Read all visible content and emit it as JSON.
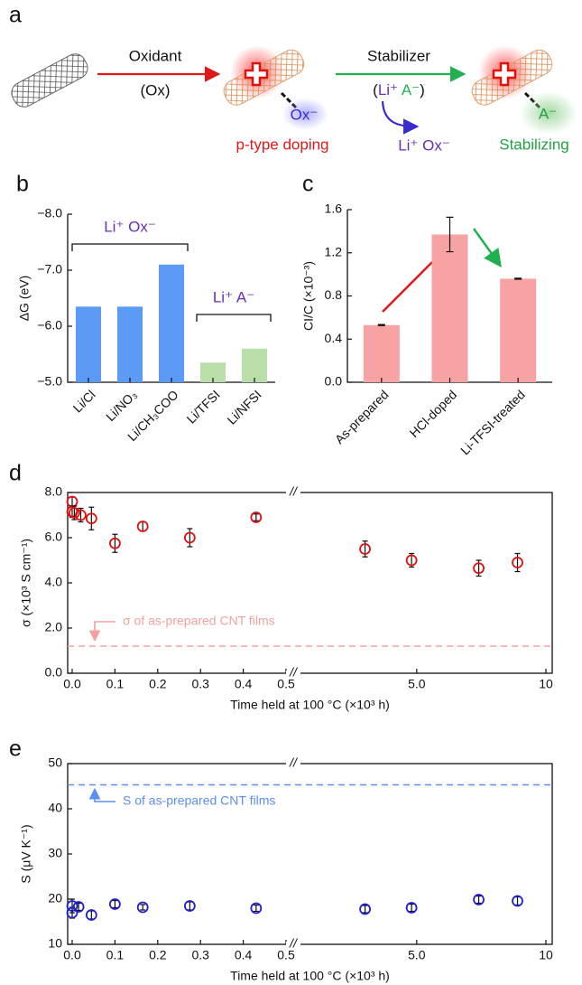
{
  "figure_a": {
    "label": "a",
    "oxidant": "Oxidant",
    "oxidant_symbol": "(Ox)",
    "ox_anion": "Ox⁻",
    "doping": "p-type doping",
    "stabilizer": "Stabilizer",
    "stabilizer_formula": [
      "(",
      "Li⁺",
      "A⁻",
      ")"
    ],
    "byproduct": "Li⁺ Ox⁻",
    "anion": "A⁻",
    "stabilizing": "Stabilizing"
  },
  "chart_data": [
    {
      "type": "bar",
      "panel_label": "b",
      "y_label": "ΔG (eV)",
      "categories": [
        "Li/Cl",
        "Li/NO₃",
        "Li/CH₃COO",
        "Li/TFSI",
        "Li/NFSI"
      ],
      "values": [
        -6.35,
        -6.35,
        -7.1,
        -5.35,
        -5.6
      ],
      "colors": [
        "#5b9bf5",
        "#5b9bf5",
        "#5b9bf5",
        "#b9dea9",
        "#b9dea9"
      ],
      "annotations": [
        "Li⁺ Ox⁻",
        "Li⁺ A⁻"
      ],
      "annotation_color": "#6a2fb0",
      "ylim": [
        -5,
        -8
      ],
      "yticks": [
        {
          "value": -8,
          "label": "−8.0"
        },
        {
          "value": -7,
          "label": "−7.0"
        },
        {
          "value": -6,
          "label": "−6.0"
        },
        {
          "value": -5,
          "label": "−5.0"
        }
      ]
    },
    {
      "type": "bar",
      "panel_label": "c",
      "y_label": "CI/C (×10⁻³)",
      "categories": [
        "As-prepared",
        "HCl-doped",
        "Li-TFSI-treated"
      ],
      "values": [
        0.53,
        1.37,
        0.96
      ],
      "errors": [
        0.005,
        0.16,
        0.005
      ],
      "color": "#f7a3a3",
      "ylim": [
        0,
        1.6
      ],
      "yticks": [
        {
          "value": 0,
          "label": "0.0"
        },
        0.4,
        0.8,
        1.2,
        1.6
      ]
    },
    {
      "type": "scatter",
      "panel_label": "d",
      "y_label": "σ (×10³ S cm⁻¹)",
      "x_label": "Time held at 100 °C (×10³ h)",
      "x": [
        0,
        0,
        0.005,
        0.02,
        0.045,
        0.1,
        0.165,
        0.275,
        0.43,
        3.0,
        4.8,
        7.4,
        8.9
      ],
      "values": [
        7.6,
        7.15,
        7.1,
        7.0,
        6.85,
        5.75,
        6.5,
        6.0,
        6.9,
        5.5,
        5.0,
        4.65,
        4.9
      ],
      "errors": [
        0.2,
        0.25,
        0.3,
        0.3,
        0.5,
        0.4,
        0.2,
        0.4,
        0.15,
        0.35,
        0.3,
        0.35,
        0.4
      ],
      "color": "#e01010",
      "xlim_segments": [
        [
          0,
          0.5
        ],
        [
          0.5,
          10
        ]
      ],
      "break_mark": "//",
      "xticks": [
        {
          "value": 0,
          "label": "0.0"
        },
        0.1,
        0.2,
        0.3,
        0.4,
        0.5,
        {
          "value": 5,
          "label": "5.0"
        },
        10
      ],
      "ylim": [
        0,
        8
      ],
      "yticks": [
        {
          "value": 0,
          "label": "0.0"
        },
        {
          "value": 2,
          "label": "2.0"
        },
        {
          "value": 4,
          "label": "4.0"
        },
        {
          "value": 6,
          "label": "6.0"
        },
        {
          "value": 8,
          "label": "8.0"
        }
      ],
      "reference": {
        "value": 1.2,
        "label": "σ of as-prepared CNT films",
        "color": "#f4a0a0"
      }
    },
    {
      "type": "scatter",
      "panel_label": "e",
      "y_label": "S (μV K⁻¹)",
      "x_label": "Time held at 100 °C (×10³ h)",
      "x": [
        0,
        0,
        0.015,
        0.045,
        0.1,
        0.165,
        0.275,
        0.43,
        3.0,
        4.8,
        7.4,
        8.9
      ],
      "values": [
        18.5,
        17.0,
        18.3,
        16.5,
        18.9,
        18.2,
        18.5,
        18.0,
        17.8,
        18.1,
        19.9,
        19.6
      ],
      "errors": [
        1.5,
        1.2,
        0.8,
        0.9,
        0.8,
        0.6,
        0.9,
        0.7,
        0.8,
        0.8,
        0.8,
        0.9
      ],
      "color": "#2020d0",
      "xlim_segments": [
        [
          0,
          0.5
        ],
        [
          0.5,
          10
        ]
      ],
      "break_mark": "//",
      "xticks": [
        {
          "value": 0,
          "label": "0.0"
        },
        0.1,
        0.2,
        0.3,
        0.4,
        0.5,
        {
          "value": 5,
          "label": "5.0"
        },
        10
      ],
      "ylim": [
        10,
        50
      ],
      "yticks": [
        10,
        20,
        30,
        40,
        50
      ],
      "reference": {
        "value": 45.3,
        "label": "S of as-prepared CNT films",
        "color": "#5b8ff0"
      }
    }
  ]
}
